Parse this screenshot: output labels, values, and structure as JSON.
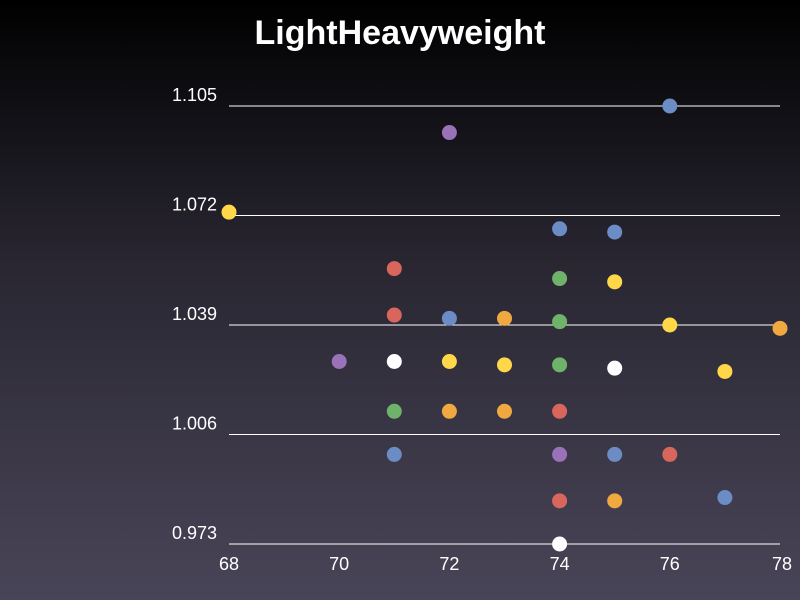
{
  "chart_data": {
    "type": "scatter",
    "title": "LightHeavyweight",
    "xlabel": "",
    "ylabel": "",
    "xlim": [
      68,
      78
    ],
    "ylim": [
      0.973,
      1.105
    ],
    "x_ticks": [
      "68",
      "70",
      "72",
      "74",
      "76",
      "78"
    ],
    "y_ticks": [
      "0.973",
      "1.006",
      "1.039",
      "1.072",
      "1.105"
    ],
    "x_tick_values": [
      68,
      70,
      72,
      74,
      76,
      78
    ],
    "y_tick_values": [
      0.973,
      1.006,
      1.039,
      1.072,
      1.105
    ],
    "grid": "horizontal",
    "colors": {
      "blue": "#6b8cc4",
      "purple": "#9a72b8",
      "yellow": "#ffd84a",
      "red": "#d9665c",
      "green": "#6fb36b",
      "orange": "#f0a840",
      "white": "#ffffff"
    },
    "points": [
      {
        "x": 76,
        "y": 1.105,
        "color": "blue"
      },
      {
        "x": 72,
        "y": 1.097,
        "color": "purple"
      },
      {
        "x": 68,
        "y": 1.073,
        "color": "yellow"
      },
      {
        "x": 74,
        "y": 1.068,
        "color": "blue"
      },
      {
        "x": 75,
        "y": 1.067,
        "color": "blue"
      },
      {
        "x": 71,
        "y": 1.056,
        "color": "red"
      },
      {
        "x": 74,
        "y": 1.053,
        "color": "green"
      },
      {
        "x": 75,
        "y": 1.052,
        "color": "yellow"
      },
      {
        "x": 71,
        "y": 1.042,
        "color": "red"
      },
      {
        "x": 72,
        "y": 1.041,
        "color": "blue"
      },
      {
        "x": 73,
        "y": 1.041,
        "color": "orange"
      },
      {
        "x": 74,
        "y": 1.04,
        "color": "green"
      },
      {
        "x": 76,
        "y": 1.039,
        "color": "yellow"
      },
      {
        "x": 78,
        "y": 1.038,
        "color": "orange"
      },
      {
        "x": 70,
        "y": 1.028,
        "color": "purple"
      },
      {
        "x": 71,
        "y": 1.028,
        "color": "white"
      },
      {
        "x": 72,
        "y": 1.028,
        "color": "yellow"
      },
      {
        "x": 73,
        "y": 1.027,
        "color": "yellow"
      },
      {
        "x": 74,
        "y": 1.027,
        "color": "green"
      },
      {
        "x": 75,
        "y": 1.026,
        "color": "white"
      },
      {
        "x": 77,
        "y": 1.025,
        "color": "yellow"
      },
      {
        "x": 71,
        "y": 1.013,
        "color": "green"
      },
      {
        "x": 72,
        "y": 1.013,
        "color": "orange"
      },
      {
        "x": 73,
        "y": 1.013,
        "color": "orange"
      },
      {
        "x": 74,
        "y": 1.013,
        "color": "red"
      },
      {
        "x": 71,
        "y": 1.0,
        "color": "blue"
      },
      {
        "x": 74,
        "y": 1.0,
        "color": "purple"
      },
      {
        "x": 75,
        "y": 1.0,
        "color": "blue"
      },
      {
        "x": 76,
        "y": 1.0,
        "color": "red"
      },
      {
        "x": 74,
        "y": 0.986,
        "color": "red"
      },
      {
        "x": 75,
        "y": 0.986,
        "color": "orange"
      },
      {
        "x": 77,
        "y": 0.987,
        "color": "blue"
      },
      {
        "x": 74,
        "y": 0.973,
        "color": "white"
      }
    ]
  }
}
